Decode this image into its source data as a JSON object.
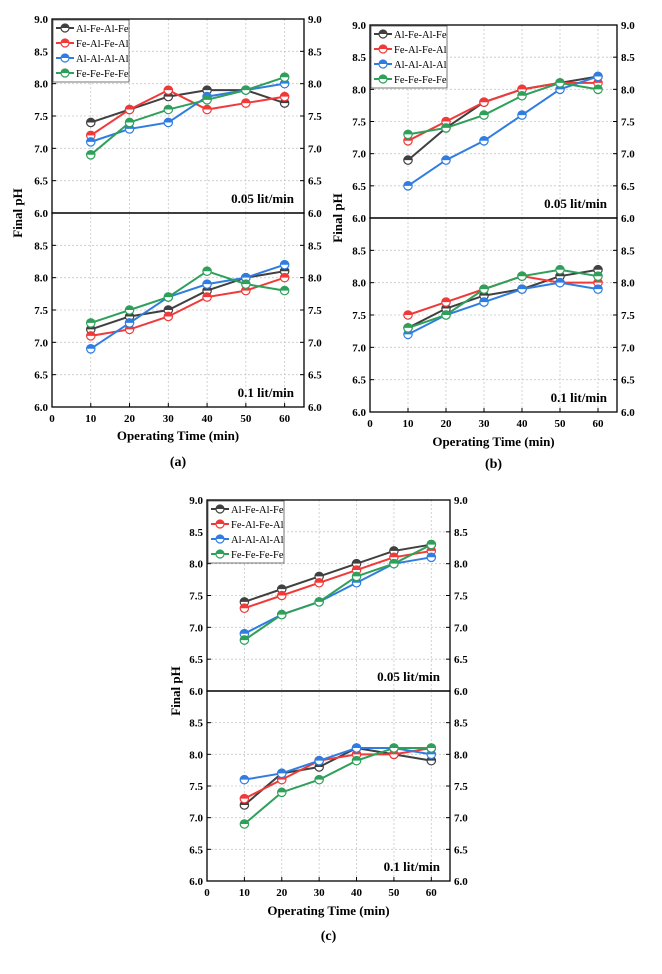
{
  "colors": {
    "Al-Fe-Al-Fe": "#404040",
    "Fe-Al-Fe-Al": "#f03a3a",
    "Al-Al-Al-Al": "#2f7de1",
    "Fe-Fe-Fe-Fe": "#2ea05a",
    "grid": "#c8c8c8"
  },
  "chart_data": [
    {
      "type": "line",
      "panel_label": "(a)",
      "xlabel": "Operating Time (min)",
      "ylabel": "Final pH",
      "xlim": [
        0,
        65
      ],
      "ylim": [
        6.0,
        9.0
      ],
      "x_ticks": [
        0,
        10,
        20,
        30,
        40,
        50,
        60
      ],
      "y_ticks": [
        6.0,
        6.5,
        7.0,
        7.5,
        8.0,
        8.5,
        9.0
      ],
      "grid": true,
      "legend": "top-left",
      "x": [
        10,
        20,
        30,
        40,
        50,
        60
      ],
      "subplots": [
        {
          "annotation": "0.05 lit/min",
          "series": [
            {
              "name": "Al-Fe-Al-Fe",
              "values": [
                7.4,
                7.6,
                7.8,
                7.9,
                7.9,
                7.7
              ]
            },
            {
              "name": "Fe-Al-Fe-Al",
              "values": [
                7.2,
                7.6,
                7.9,
                7.6,
                7.7,
                7.8
              ]
            },
            {
              "name": "Al-Al-Al-Al",
              "values": [
                7.1,
                7.3,
                7.4,
                7.8,
                7.9,
                8.0
              ]
            },
            {
              "name": "Fe-Fe-Fe-Fe",
              "values": [
                6.9,
                7.4,
                7.6,
                7.75,
                7.9,
                8.1
              ]
            }
          ]
        },
        {
          "annotation": "0.1 lit/min",
          "series": [
            {
              "name": "Al-Fe-Al-Fe",
              "values": [
                7.2,
                7.4,
                7.5,
                7.8,
                8.0,
                8.1
              ]
            },
            {
              "name": "Fe-Al-Fe-Al",
              "values": [
                7.1,
                7.2,
                7.4,
                7.7,
                7.8,
                8.0
              ]
            },
            {
              "name": "Al-Al-Al-Al",
              "values": [
                6.9,
                7.3,
                7.7,
                7.9,
                8.0,
                8.2
              ]
            },
            {
              "name": "Fe-Fe-Fe-Fe",
              "values": [
                7.3,
                7.5,
                7.7,
                8.1,
                7.9,
                7.8
              ]
            }
          ]
        }
      ]
    },
    {
      "type": "line",
      "panel_label": "(b)",
      "xlabel": "Operating Time (min)",
      "ylabel": "Final pH",
      "xlim": [
        0,
        65
      ],
      "ylim": [
        6.0,
        9.0
      ],
      "x_ticks": [
        0,
        10,
        20,
        30,
        40,
        50,
        60
      ],
      "y_ticks": [
        6.0,
        6.5,
        7.0,
        7.5,
        8.0,
        8.5,
        9.0
      ],
      "grid": true,
      "legend": "top-left",
      "x": [
        10,
        20,
        30,
        40,
        50,
        60
      ],
      "subplots": [
        {
          "annotation": "0.05 lit/min",
          "series": [
            {
              "name": "Al-Fe-Al-Fe",
              "values": [
                6.9,
                7.4,
                7.8,
                8.0,
                8.1,
                8.2
              ]
            },
            {
              "name": "Fe-Al-Fe-Al",
              "values": [
                7.2,
                7.5,
                7.8,
                8.0,
                8.1,
                8.1
              ]
            },
            {
              "name": "Al-Al-Al-Al",
              "values": [
                6.5,
                6.9,
                7.2,
                7.6,
                8.0,
                8.2
              ]
            },
            {
              "name": "Fe-Fe-Fe-Fe",
              "values": [
                7.3,
                7.4,
                7.6,
                7.9,
                8.1,
                8.0
              ]
            }
          ]
        },
        {
          "annotation": "0.1 lit/min",
          "series": [
            {
              "name": "Al-Fe-Al-Fe",
              "values": [
                7.3,
                7.6,
                7.8,
                7.9,
                8.1,
                8.2
              ]
            },
            {
              "name": "Fe-Al-Fe-Al",
              "values": [
                7.5,
                7.7,
                7.9,
                8.1,
                8.0,
                8.0
              ]
            },
            {
              "name": "Al-Al-Al-Al",
              "values": [
                7.2,
                7.5,
                7.7,
                7.9,
                8.0,
                7.9
              ]
            },
            {
              "name": "Fe-Fe-Fe-Fe",
              "values": [
                7.3,
                7.5,
                7.9,
                8.1,
                8.2,
                8.1
              ]
            }
          ]
        }
      ]
    },
    {
      "type": "line",
      "panel_label": "(c)",
      "xlabel": "Operating Time (min)",
      "ylabel": "Final pH",
      "xlim": [
        0,
        65
      ],
      "ylim": [
        6.0,
        9.0
      ],
      "x_ticks": [
        0,
        10,
        20,
        30,
        40,
        50,
        60
      ],
      "y_ticks": [
        6.0,
        6.5,
        7.0,
        7.5,
        8.0,
        8.5,
        9.0
      ],
      "grid": true,
      "legend": "top-left",
      "x": [
        10,
        20,
        30,
        40,
        50,
        60
      ],
      "subplots": [
        {
          "annotation": "0.05 lit/min",
          "series": [
            {
              "name": "Al-Fe-Al-Fe",
              "values": [
                7.4,
                7.6,
                7.8,
                8.0,
                8.2,
                8.3
              ]
            },
            {
              "name": "Fe-Al-Fe-Al",
              "values": [
                7.3,
                7.5,
                7.7,
                7.9,
                8.1,
                8.2
              ]
            },
            {
              "name": "Al-Al-Al-Al",
              "values": [
                6.9,
                7.2,
                7.4,
                7.7,
                8.0,
                8.1
              ]
            },
            {
              "name": "Fe-Fe-Fe-Fe",
              "values": [
                6.8,
                7.2,
                7.4,
                7.8,
                8.0,
                8.3
              ]
            }
          ]
        },
        {
          "annotation": "0.1 lit/min",
          "series": [
            {
              "name": "Al-Fe-Al-Fe",
              "values": [
                7.2,
                7.7,
                7.8,
                8.1,
                8.0,
                7.9
              ]
            },
            {
              "name": "Fe-Al-Fe-Al",
              "values": [
                7.3,
                7.6,
                7.9,
                8.0,
                8.0,
                8.1
              ]
            },
            {
              "name": "Al-Al-Al-Al",
              "values": [
                7.6,
                7.7,
                7.9,
                8.1,
                8.1,
                8.0
              ]
            },
            {
              "name": "Fe-Fe-Fe-Fe",
              "values": [
                6.9,
                7.4,
                7.6,
                7.9,
                8.1,
                8.1
              ]
            }
          ]
        }
      ]
    }
  ]
}
